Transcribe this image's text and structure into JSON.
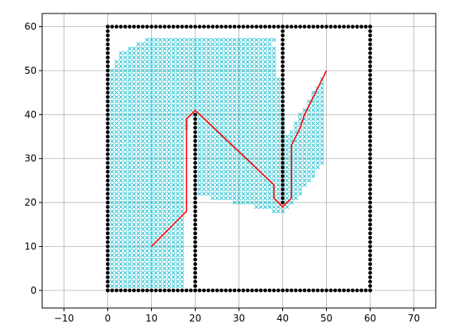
{
  "chart_data": {
    "type": "scatter",
    "title": "",
    "xlabel": "",
    "ylabel": "",
    "xlim": [
      -15,
      75
    ],
    "ylim": [
      -4,
      63
    ],
    "xticks": [
      -10,
      0,
      10,
      20,
      30,
      40,
      50,
      60,
      70
    ],
    "yticks": [
      0,
      10,
      20,
      30,
      40,
      50,
      60
    ],
    "grid": true,
    "obstacle_color": "#000000",
    "explored_color": "#17becf",
    "path_color": "#ff0000",
    "obstacle_segments": [
      {
        "from": [
          0,
          0
        ],
        "to": [
          60,
          0
        ]
      },
      {
        "from": [
          0,
          60
        ],
        "to": [
          60,
          60
        ]
      },
      {
        "from": [
          0,
          0
        ],
        "to": [
          0,
          60
        ]
      },
      {
        "from": [
          60,
          0
        ],
        "to": [
          60,
          60
        ]
      },
      {
        "from": [
          20,
          0
        ],
        "to": [
          20,
          40
        ]
      },
      {
        "from": [
          40,
          20
        ],
        "to": [
          40,
          60
        ]
      }
    ],
    "explored_regions": [
      {
        "name": "left-region",
        "polygon": [
          [
            1,
            1
          ],
          [
            18,
            1
          ],
          [
            18,
            36
          ],
          [
            19,
            40
          ],
          [
            21,
            40
          ],
          [
            21,
            22
          ],
          [
            24,
            21
          ],
          [
            34,
            19
          ],
          [
            38,
            18
          ],
          [
            40,
            17
          ],
          [
            42,
            19
          ],
          [
            48,
            27
          ],
          [
            50,
            29
          ],
          [
            50,
            50
          ],
          [
            44,
            40
          ],
          [
            41,
            35
          ],
          [
            38,
            56
          ],
          [
            39,
            58
          ],
          [
            10,
            58
          ],
          [
            3,
            54
          ],
          [
            1,
            50
          ]
        ]
      }
    ],
    "path": [
      [
        10,
        10
      ],
      [
        18,
        18
      ],
      [
        18,
        39
      ],
      [
        20,
        41
      ],
      [
        38,
        24
      ],
      [
        38,
        21
      ],
      [
        40,
        19
      ],
      [
        42,
        21
      ],
      [
        42,
        33
      ],
      [
        43,
        35
      ],
      [
        44,
        37
      ],
      [
        45,
        40
      ],
      [
        46,
        42
      ],
      [
        47,
        44
      ],
      [
        48,
        46
      ],
      [
        49,
        48
      ],
      [
        50,
        50
      ]
    ]
  }
}
